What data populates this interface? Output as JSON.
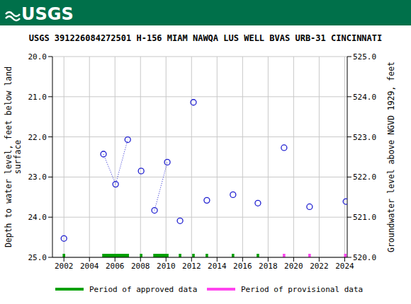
{
  "logo": "USGS",
  "chart_data": {
    "type": "scatter",
    "title": "USGS 391226084272501 H-156 MIAM NAWQA LUS WELL BVAS URB-31 CINCINNATI",
    "y_label": "Depth to water level, feet below land\nsurface",
    "y2_label": "Groundwater level above NGVD 1929, feet",
    "x": [
      2002.0,
      2005.1,
      2006.05,
      2007.0,
      2008.05,
      2009.1,
      2010.1,
      2011.1,
      2012.15,
      2013.2,
      2015.25,
      2017.2,
      2019.25,
      2021.25,
      2024.1
    ],
    "series": [
      {
        "type": "scatter",
        "marker": "circle",
        "color": "#1f1fd0",
        "values": [
          24.53,
          22.43,
          23.18,
          22.07,
          22.85,
          23.83,
          22.63,
          24.09,
          21.14,
          23.58,
          23.44,
          23.65,
          22.27,
          23.74,
          23.61
        ]
      },
      {
        "type": "line",
        "line_style": "dotted",
        "color": "#1f1fd0",
        "values": [
          null,
          22.43,
          23.18,
          22.07,
          null,
          23.83,
          22.63,
          null,
          null,
          null,
          null,
          null,
          null,
          null,
          null
        ]
      }
    ],
    "periods": [
      {
        "name": "Period of approved data",
        "color": "#00a000",
        "ranges": [
          [
            2001.9,
            2002.1
          ],
          [
            2005.0,
            2007.1
          ],
          [
            2007.95,
            2008.15
          ],
          [
            2009.0,
            2010.2
          ],
          [
            2011.0,
            2011.2
          ],
          [
            2012.05,
            2012.25
          ],
          [
            2013.1,
            2013.3
          ],
          [
            2015.15,
            2015.35
          ],
          [
            2017.1,
            2017.3
          ]
        ]
      },
      {
        "name": "Period of provisional data",
        "color": "#ff44ee",
        "ranges": [
          [
            2019.15,
            2019.35
          ],
          [
            2021.15,
            2021.35
          ],
          [
            2023.95,
            2024.15
          ]
        ]
      }
    ],
    "legend": "bottom",
    "xlim": [
      2001.1,
      2024.2
    ],
    "xticks": [
      2002,
      2004,
      2006,
      2008,
      2010,
      2012,
      2014,
      2016,
      2018,
      2020,
      2022,
      2024
    ],
    "ylim": [
      25,
      20
    ],
    "yticks": [
      {
        "value": 20,
        "label": "20.0"
      },
      {
        "value": 21,
        "label": "21.0"
      },
      {
        "value": 22,
        "label": "22.0"
      },
      {
        "value": 23,
        "label": "23.0"
      },
      {
        "value": 24,
        "label": "24.0"
      },
      {
        "value": 25,
        "label": "25.0"
      }
    ],
    "y2lim": [
      520,
      525
    ],
    "y2ticks": [
      {
        "value": 520,
        "label": "520.0"
      },
      {
        "value": 521,
        "label": "521.0"
      },
      {
        "value": 522,
        "label": "522.0"
      },
      {
        "value": 523,
        "label": "523.0"
      },
      {
        "value": 524,
        "label": "524.0"
      },
      {
        "value": 525,
        "label": "525.0"
      }
    ],
    "grid": true
  }
}
